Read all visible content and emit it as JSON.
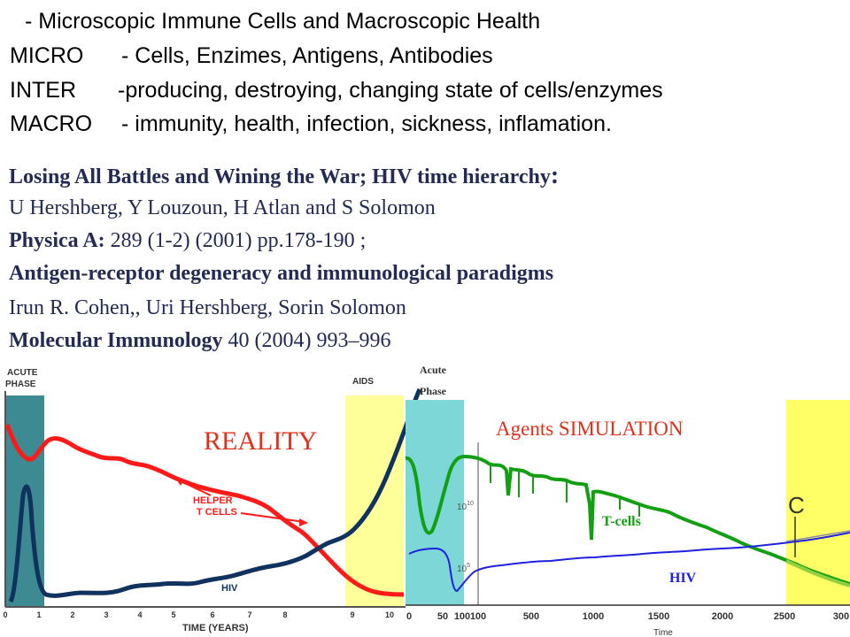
{
  "header": {
    "title": "- Microscopic Immune Cells and Macroscopic Health",
    "rows": [
      {
        "term": "MICRO",
        "desc": "- Cells, Enzimes, Antigens, Antibodies"
      },
      {
        "term": "INTER",
        "desc": "-producing, destroying, changing state of cells/enzymes"
      },
      {
        "term": "MACRO",
        "desc": "- immunity, health, infection, sickness, inflamation."
      }
    ]
  },
  "references": {
    "ref1_title": "Losing All Battles and Wining the War; HIV time hierarchy",
    "ref1_colon": ":",
    "ref1_authors": "U Hershberg, Y Louzoun, H Atlan and S Solomon",
    "ref1_journal": "Physica A:",
    "ref1_details": " 289 (1-2) (2001) pp.178-190 ;",
    "ref2_title": "Antigen-receptor degeneracy and immunological paradigms",
    "ref2_authors": "Irun R. Cohen,, Uri Hershberg, Sorin Solomon",
    "ref2_journal": "Molecular Immunology",
    "ref2_details": " 40 (2004) 993–996"
  },
  "reality_plot": {
    "label": "REALITY",
    "acute_label_1": "ACUTE",
    "acute_label_2": "PHASE",
    "aids_label": "AIDS",
    "helper_label_1": "HELPER",
    "helper_label_2": "T CELLS",
    "hiv_label": "HIV",
    "x_ticks": [
      "0",
      "1",
      "2",
      "3",
      "4",
      "5",
      "6",
      "7",
      "8",
      "9",
      "10"
    ],
    "x_axis_label": "TIME (YEARS)",
    "colors": {
      "tcells": "#ff1a1a",
      "hiv": "#10325e",
      "acute_band": "#3e8a92",
      "aids_band": "#ffff99"
    }
  },
  "simulation_plot": {
    "label": "Agents SIMULATION",
    "acute_label_1": "Acute",
    "acute_label_2": "Phase",
    "tcells_label": "T-cells",
    "hiv_label": "HIV",
    "y_tick_top": "10",
    "y_tick_top_exp": "10",
    "y_tick_bottom": "10",
    "y_tick_bottom_exp": "5",
    "c_label": "C",
    "x_ticks": [
      "0",
      "50",
      "100",
      "100",
      "500",
      "1000",
      "1500",
      "2000",
      "2500",
      "300"
    ],
    "x_axis_label": "Time",
    "colors": {
      "tcells": "#12a012",
      "hiv": "#2020e0",
      "acute_band": "#7dd7d7",
      "late_band": "#ffff66",
      "label": "#e0301a"
    }
  }
}
